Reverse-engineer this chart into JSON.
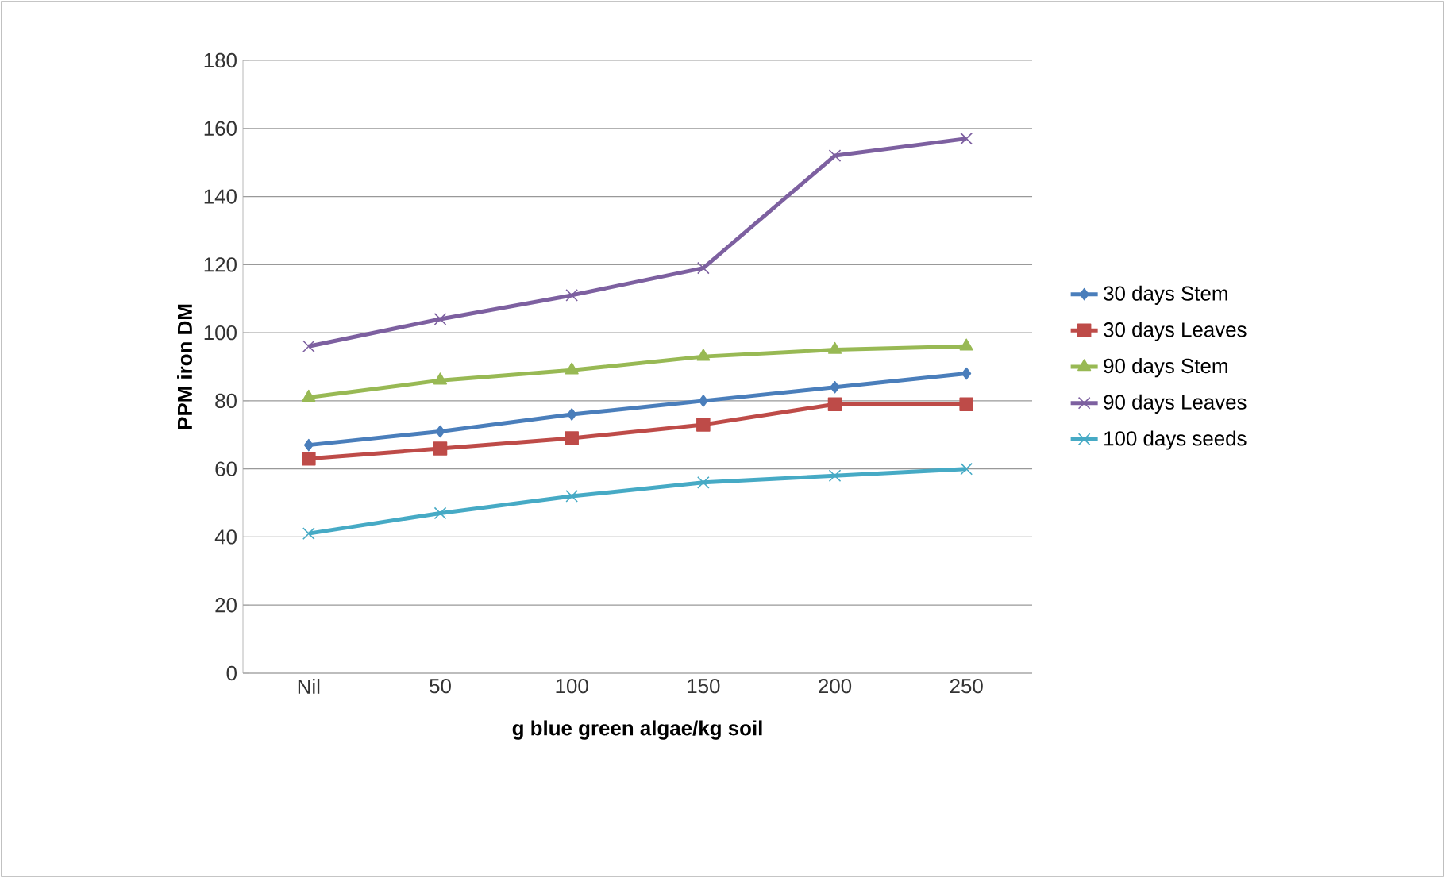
{
  "chart_data": {
    "type": "line",
    "xlabel": "g blue green algae/kg soil",
    "ylabel": "PPM iron DM",
    "categories": [
      "Nil",
      "50",
      "100",
      "150",
      "200",
      "250"
    ],
    "ylim": [
      0,
      180
    ],
    "yticks": [
      0,
      20,
      40,
      60,
      80,
      100,
      120,
      140,
      160,
      180
    ],
    "grid": "y",
    "legend": "right",
    "line_style": "solid",
    "series": [
      {
        "name": "30 days Stem",
        "color": "#4a7ebb",
        "marker": "diamond",
        "values": [
          67,
          71,
          76,
          80,
          84,
          88
        ]
      },
      {
        "name": "30 days Leaves",
        "color": "#be4b48",
        "marker": "square",
        "values": [
          63,
          66,
          69,
          73,
          79,
          79
        ]
      },
      {
        "name": "90 days Stem",
        "color": "#98b954",
        "marker": "triangle",
        "values": [
          81,
          86,
          89,
          93,
          95,
          96
        ]
      },
      {
        "name": "90 days Leaves",
        "color": "#7d60a0",
        "marker": "cross",
        "values": [
          96,
          104,
          111,
          119,
          152,
          157
        ]
      },
      {
        "name": "100 days seeds",
        "color": "#46aac5",
        "marker": "cross",
        "values": [
          41,
          47,
          52,
          56,
          58,
          60
        ]
      }
    ]
  }
}
